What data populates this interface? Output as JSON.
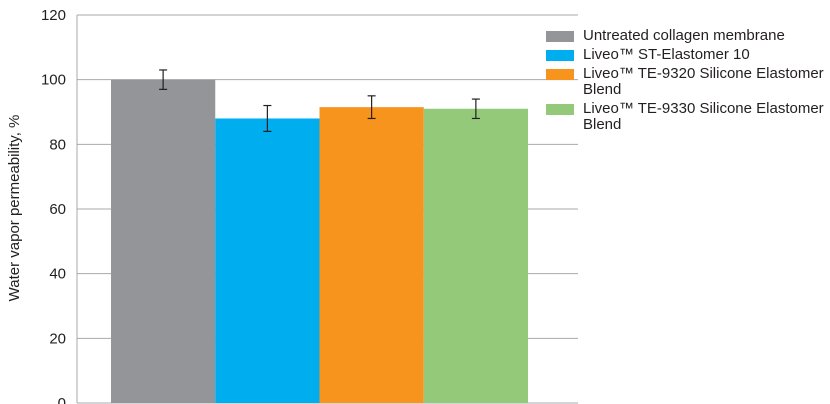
{
  "chart_data": {
    "type": "bar",
    "title": "",
    "xlabel": "",
    "ylabel": "Water vapor permeability, %",
    "ylim": [
      0,
      120
    ],
    "yticks": [
      "0",
      "20",
      "40",
      "60",
      "80",
      "100",
      "120"
    ],
    "grid": true,
    "legend_position": "right",
    "series": [
      {
        "name": "Untreated collagen membrane",
        "value": 100,
        "error": 3,
        "color": "#939598"
      },
      {
        "name": "Liveo™ ST-Elastomer 10",
        "value": 88,
        "error": 4,
        "color": "#00aeef"
      },
      {
        "name": "Liveo™ TE-9320 Silicone Elastomer Blend",
        "value": 91.5,
        "error": 3.5,
        "color": "#f7941d"
      },
      {
        "name": "Liveo™ TE-9330 Silicone Elastomer Blend",
        "value": 91,
        "error": 3,
        "color": "#95c97a"
      }
    ]
  }
}
